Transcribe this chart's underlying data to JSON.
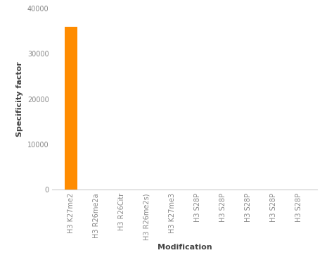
{
  "categories": [
    "H3 K27me2",
    "H3 R26me2a",
    "H3 R26Citr",
    "H3 R26me2s)",
    "H3 K27me3",
    "H3 S28P",
    "H3 S28P",
    "H3 S28P",
    "H3 S28P",
    "H3 S28P"
  ],
  "values": [
    36000,
    80,
    60,
    70,
    50,
    40,
    40,
    40,
    40,
    40
  ],
  "bar_color": "#FF8C00",
  "xlabel": "Modification",
  "ylabel": "Specificity factor",
  "ylim": [
    0,
    40000
  ],
  "yticks": [
    0,
    10000,
    20000,
    30000,
    40000
  ],
  "background_color": "#ffffff",
  "font_size_axis_label": 8,
  "font_size_ticks": 7,
  "bar_width": 0.5
}
